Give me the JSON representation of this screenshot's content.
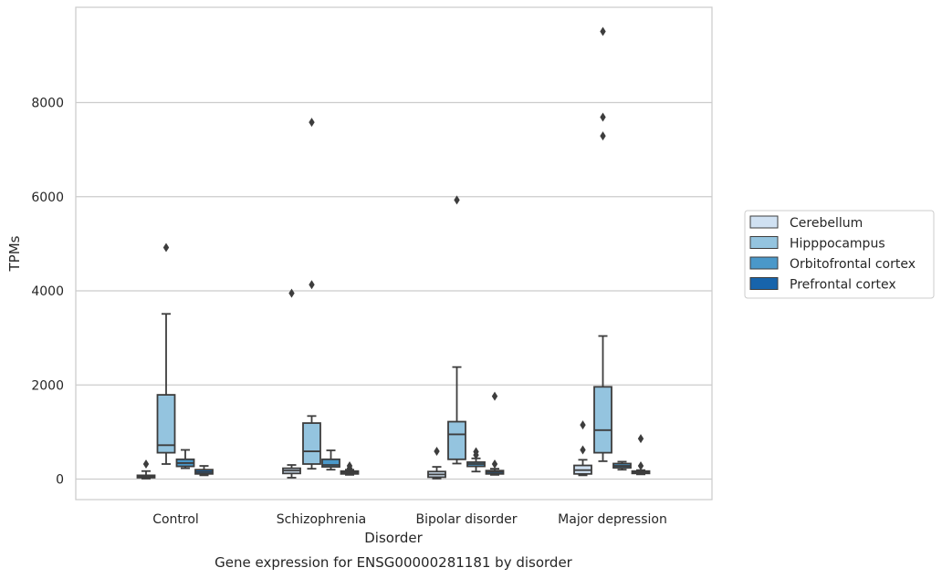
{
  "chart_data": {
    "type": "box",
    "xlabel": "Disorder",
    "ylabel": "TPMs",
    "caption": "Gene expression for ENSG00000281181 by disorder",
    "categories": [
      "Control",
      "Schizophrenia",
      "Bipolar disorder",
      "Major depression"
    ],
    "ylim": [
      -450,
      10000
    ],
    "yticks": [
      0,
      2000,
      4000,
      6000,
      8000
    ],
    "grid": "horizontal",
    "legend_position": "right",
    "hue_order": [
      "Cerebellum",
      "Hipppocampus",
      "Orbitofrontal cortex",
      "Prefrontal cortex"
    ],
    "colors": {
      "Cerebellum": "#d0e1f2",
      "Hipppocampus": "#94c4df",
      "Orbitofrontal cortex": "#4a98c9",
      "Prefrontal cortex": "#1764ab",
      "line": "#3d3d3d",
      "grid": "#cccccc",
      "frame": "#cccccc"
    },
    "boxes": [
      {
        "category": "Control",
        "hue": "Cerebellum",
        "whislo": 10,
        "q1": 30,
        "median": 50,
        "q3": 80,
        "whishi": 170,
        "fliers": [
          320
        ]
      },
      {
        "category": "Control",
        "hue": "Hipppocampus",
        "whislo": 320,
        "q1": 560,
        "median": 720,
        "q3": 1790,
        "whishi": 3510,
        "fliers": [
          4920
        ]
      },
      {
        "category": "Control",
        "hue": "Orbitofrontal cortex",
        "whislo": 230,
        "q1": 270,
        "median": 340,
        "q3": 420,
        "whishi": 620,
        "fliers": []
      },
      {
        "category": "Control",
        "hue": "Prefrontal cortex",
        "whislo": 80,
        "q1": 110,
        "median": 150,
        "q3": 200,
        "whishi": 280,
        "fliers": []
      },
      {
        "category": "Schizophrenia",
        "hue": "Cerebellum",
        "whislo": 30,
        "q1": 120,
        "median": 180,
        "q3": 230,
        "whishi": 300,
        "fliers": [
          3950
        ]
      },
      {
        "category": "Schizophrenia",
        "hue": "Hipppocampus",
        "whislo": 220,
        "q1": 320,
        "median": 590,
        "q3": 1190,
        "whishi": 1340,
        "fliers": [
          4130,
          7580
        ]
      },
      {
        "category": "Schizophrenia",
        "hue": "Orbitofrontal cortex",
        "whislo": 200,
        "q1": 260,
        "median": 300,
        "q3": 420,
        "whishi": 610,
        "fliers": []
      },
      {
        "category": "Schizophrenia",
        "hue": "Prefrontal cortex",
        "whislo": 90,
        "q1": 110,
        "median": 140,
        "q3": 170,
        "whishi": 200,
        "fliers": [
          230,
          280
        ]
      },
      {
        "category": "Bipolar disorder",
        "hue": "Cerebellum",
        "whislo": 10,
        "q1": 40,
        "median": 100,
        "q3": 160,
        "whishi": 260,
        "fliers": [
          590
        ]
      },
      {
        "category": "Bipolar disorder",
        "hue": "Hipppocampus",
        "whislo": 330,
        "q1": 420,
        "median": 950,
        "q3": 1220,
        "whishi": 2380,
        "fliers": [
          5930
        ]
      },
      {
        "category": "Bipolar disorder",
        "hue": "Orbitofrontal cortex",
        "whislo": 160,
        "q1": 270,
        "median": 320,
        "q3": 360,
        "whishi": 440,
        "fliers": [
          510,
          580
        ]
      },
      {
        "category": "Bipolar disorder",
        "hue": "Prefrontal cortex",
        "whislo": 90,
        "q1": 110,
        "median": 150,
        "q3": 180,
        "whishi": 220,
        "fliers": [
          320,
          1760
        ]
      },
      {
        "category": "Major depression",
        "hue": "Cerebellum",
        "whislo": 80,
        "q1": 110,
        "median": 190,
        "q3": 290,
        "whishi": 410,
        "fliers": [
          620,
          1150
        ]
      },
      {
        "category": "Major depression",
        "hue": "Hipppocampus",
        "whislo": 380,
        "q1": 560,
        "median": 1040,
        "q3": 1960,
        "whishi": 3040,
        "fliers": [
          7290,
          7690,
          9510
        ]
      },
      {
        "category": "Major depression",
        "hue": "Orbitofrontal cortex",
        "whislo": 200,
        "q1": 240,
        "median": 280,
        "q3": 330,
        "whishi": 370,
        "fliers": []
      },
      {
        "category": "Major depression",
        "hue": "Prefrontal cortex",
        "whislo": 100,
        "q1": 120,
        "median": 140,
        "q3": 170,
        "whishi": 190,
        "fliers": [
          280,
          860
        ]
      }
    ]
  }
}
